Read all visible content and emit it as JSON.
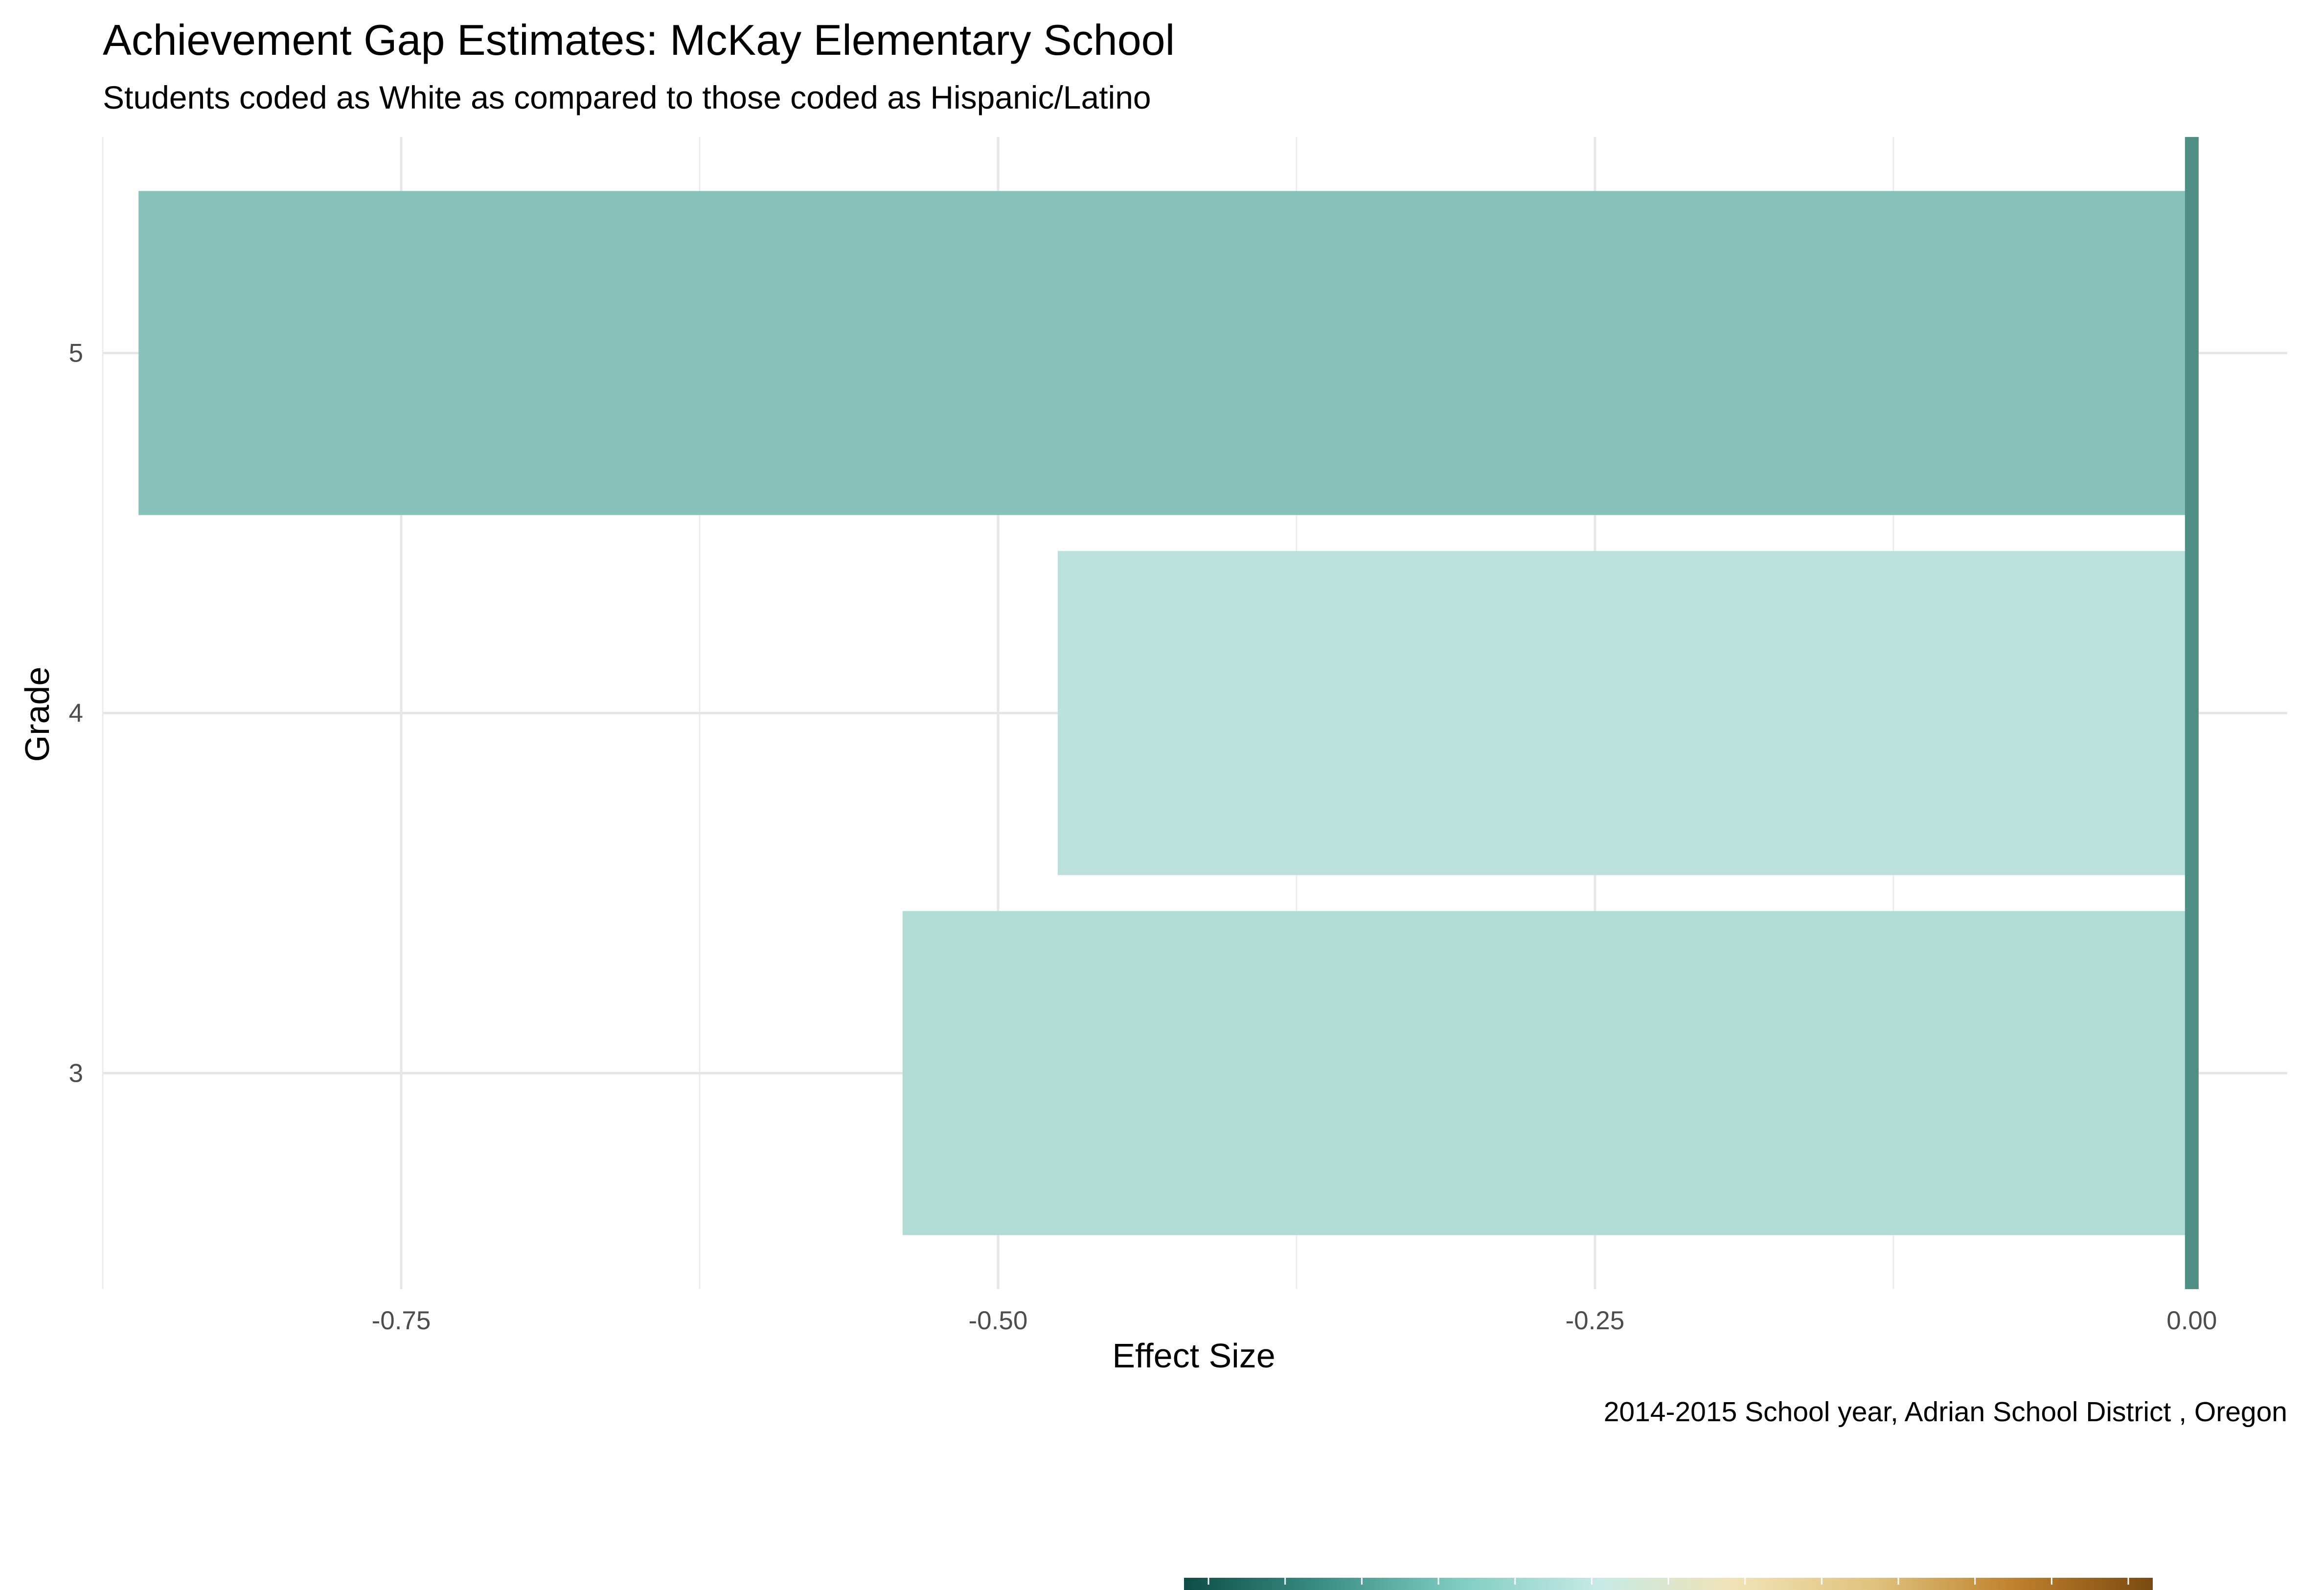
{
  "chart_data": {
    "type": "bar",
    "orientation": "horizontal",
    "title": "Achievement Gap Estimates: McKay Elementary School",
    "subtitle": "Students coded as White as compared to those coded as Hispanic/Latino",
    "xlabel": "Effect Size",
    "ylabel": "Grade",
    "caption": "2014-2015 School year,  Adrian School District , Oregon",
    "categories": [
      "3",
      "4",
      "5"
    ],
    "values": [
      -0.54,
      -0.475,
      -0.86
    ],
    "bar_colors": [
      "#b1dbd5",
      "#bae1dc",
      "#87c3bb"
    ],
    "xlim": [
      -0.875,
      0.04
    ],
    "x_ticks": [
      -0.75,
      -0.5,
      -0.25,
      0.0
    ],
    "x_tick_labels": [
      "-0.75",
      "-0.50",
      "-0.25",
      "0.00"
    ],
    "reference_line": {
      "x": 0.0,
      "color": "#4f8f85"
    },
    "grid": true,
    "legend": "colorbar-bottom",
    "colorbar_colors": [
      "#0e4d45",
      "#3a8f85",
      "#80cdc1",
      "#c7eae5",
      "#f1e2b5",
      "#dfc27d",
      "#bf812d",
      "#7a4a10"
    ]
  }
}
